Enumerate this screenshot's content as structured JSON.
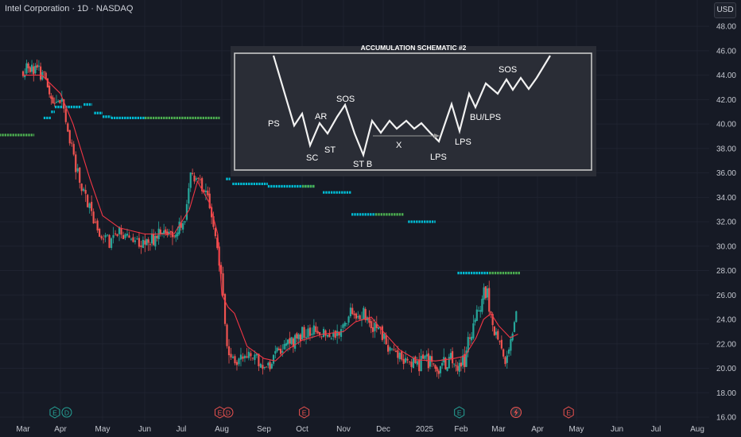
{
  "header": {
    "title": "Intel Corporation · 1D · NASDAQ",
    "currency": "USD"
  },
  "colors": {
    "background": "#161a25",
    "up": "#26a69a",
    "down": "#ef5350",
    "ma_line": "#f23645",
    "level_cyan": "#00bcd4",
    "level_green": "#4caf50",
    "level_red": "#f23645",
    "schematic_bg": "#2a2d36",
    "schematic_line": "#ffffff"
  },
  "chart_data": {
    "type": "candlestick",
    "title": "Intel Corporation · 1D · NASDAQ",
    "ylim": [
      16,
      48
    ],
    "y_ticks": [
      "16.00",
      "18.00",
      "20.00",
      "22.00",
      "24.00",
      "26.00",
      "28.00",
      "30.00",
      "32.00",
      "34.00",
      "36.00",
      "38.00",
      "40.00",
      "42.00",
      "44.00",
      "46.00",
      "48.00"
    ],
    "x_ticks": [
      "Mar",
      "Apr",
      "May",
      "Jun",
      "Jul",
      "Aug",
      "Sep",
      "Oct",
      "Nov",
      "Dec",
      "2025",
      "Feb",
      "Mar",
      "Apr",
      "May",
      "Jun",
      "Jul",
      "Aug"
    ],
    "x_tick_index": [
      0,
      1,
      2,
      3,
      4,
      5,
      6,
      7,
      8,
      9,
      10,
      11,
      12,
      13,
      14,
      15,
      16,
      17
    ],
    "price_anchors": [
      [
        0.0,
        44.2
      ],
      [
        0.3,
        44.8
      ],
      [
        0.6,
        43.5
      ],
      [
        0.8,
        41.5
      ],
      [
        1.0,
        42.0
      ],
      [
        1.2,
        39.0
      ],
      [
        1.4,
        36.0
      ],
      [
        1.6,
        34.0
      ],
      [
        1.9,
        31.0
      ],
      [
        2.1,
        30.7
      ],
      [
        2.5,
        30.8
      ],
      [
        3.0,
        30.5
      ],
      [
        3.5,
        30.9
      ],
      [
        3.9,
        31.0
      ],
      [
        4.1,
        32.5
      ],
      [
        4.2,
        35.5
      ],
      [
        4.4,
        36.0
      ],
      [
        4.6,
        34.5
      ],
      [
        4.8,
        31.5
      ],
      [
        5.0,
        28.0
      ],
      [
        5.1,
        22.0
      ],
      [
        5.3,
        20.5
      ],
      [
        5.6,
        21.0
      ],
      [
        5.9,
        20.5
      ],
      [
        6.1,
        20.0
      ],
      [
        6.4,
        21.5
      ],
      [
        6.8,
        22.5
      ],
      [
        7.2,
        23.0
      ],
      [
        7.6,
        22.5
      ],
      [
        7.9,
        23.0
      ],
      [
        8.2,
        24.5
      ],
      [
        8.5,
        24.5
      ],
      [
        8.8,
        23.5
      ],
      [
        9.2,
        21.5
      ],
      [
        9.6,
        20.4
      ],
      [
        10.0,
        20.5
      ],
      [
        10.4,
        20.2
      ],
      [
        10.7,
        20.5
      ],
      [
        10.9,
        20.3
      ],
      [
        11.1,
        20.7
      ],
      [
        11.3,
        23.5
      ],
      [
        11.5,
        25.0
      ],
      [
        11.7,
        26.5
      ],
      [
        11.8,
        24.0
      ],
      [
        12.0,
        22.3
      ],
      [
        12.2,
        20.2
      ],
      [
        12.4,
        23.5
      ],
      [
        12.5,
        25.8
      ]
    ],
    "ma_anchors": [
      [
        0.0,
        44.0
      ],
      [
        0.5,
        44.0
      ],
      [
        1.0,
        42.5
      ],
      [
        1.3,
        40.0
      ],
      [
        1.7,
        35.5
      ],
      [
        2.0,
        32.5
      ],
      [
        2.4,
        31.5
      ],
      [
        3.0,
        31.0
      ],
      [
        3.8,
        31.0
      ],
      [
        4.2,
        33.0
      ],
      [
        4.4,
        35.3
      ],
      [
        4.7,
        33.5
      ],
      [
        4.9,
        31.0
      ],
      [
        5.0,
        26.0
      ],
      [
        5.15,
        25.0
      ],
      [
        5.3,
        24.5
      ],
      [
        5.6,
        21.8
      ],
      [
        6.0,
        20.8
      ],
      [
        6.3,
        20.6
      ],
      [
        6.6,
        21.5
      ],
      [
        7.0,
        22.3
      ],
      [
        7.5,
        22.8
      ],
      [
        8.0,
        23.0
      ],
      [
        8.3,
        23.8
      ],
      [
        8.7,
        24.2
      ],
      [
        9.0,
        23.0
      ],
      [
        9.4,
        21.5
      ],
      [
        9.8,
        20.7
      ],
      [
        10.3,
        20.6
      ],
      [
        10.8,
        20.8
      ],
      [
        11.1,
        21.0
      ],
      [
        11.4,
        22.5
      ],
      [
        11.6,
        24.0
      ],
      [
        11.8,
        24.5
      ],
      [
        12.0,
        23.5
      ],
      [
        12.3,
        22.5
      ],
      [
        12.5,
        22.8
      ]
    ],
    "levels": [
      {
        "x0": -0.5,
        "x1": 0.3,
        "y": 39.1,
        "color": "level_green"
      },
      {
        "x0": 0.55,
        "x1": 0.75,
        "y": 40.5,
        "color": "level_cyan"
      },
      {
        "x0": 0.75,
        "x1": 0.85,
        "y": 41.0,
        "color": "level_cyan"
      },
      {
        "x0": 0.85,
        "x1": 1.5,
        "y": 41.4,
        "color": "level_cyan"
      },
      {
        "x0": 1.55,
        "x1": 1.75,
        "y": 41.6,
        "color": "level_cyan"
      },
      {
        "x0": 1.8,
        "x1": 2.0,
        "y": 40.9,
        "color": "level_cyan"
      },
      {
        "x0": 2.0,
        "x1": 2.2,
        "y": 40.6,
        "color": "level_cyan"
      },
      {
        "x0": 2.2,
        "x1": 3.0,
        "y": 40.5,
        "color": "level_cyan"
      },
      {
        "x0": 3.0,
        "x1": 4.95,
        "y": 40.5,
        "color": "level_green"
      },
      {
        "x0": 5.1,
        "x1": 5.2,
        "y": 35.5,
        "color": "level_cyan"
      },
      {
        "x0": 5.25,
        "x1": 6.1,
        "y": 35.1,
        "color": "level_cyan"
      },
      {
        "x0": 6.1,
        "x1": 7.3,
        "y": 34.9,
        "color": "level_cyan"
      },
      {
        "x0": 7.0,
        "x1": 7.3,
        "y": 34.9,
        "color": "level_green"
      },
      {
        "x0": 7.5,
        "x1": 8.2,
        "y": 34.4,
        "color": "level_cyan"
      },
      {
        "x0": 8.2,
        "x1": 8.8,
        "y": 32.6,
        "color": "level_cyan"
      },
      {
        "x0": 8.8,
        "x1": 9.5,
        "y": 32.6,
        "color": "level_green"
      },
      {
        "x0": 9.6,
        "x1": 10.3,
        "y": 32.0,
        "color": "level_cyan"
      },
      {
        "x0": 10.9,
        "x1": 11.75,
        "y": 27.8,
        "color": "level_cyan"
      },
      {
        "x0": 11.75,
        "x1": 12.55,
        "y": 27.8,
        "color": "level_green"
      }
    ]
  },
  "event_markers": [
    {
      "label": "E",
      "kind": "earnings",
      "color": "#26a69a",
      "x": 0.85
    },
    {
      "label": "D",
      "kind": "dividend",
      "color": "#26a69a",
      "x": 1.15
    },
    {
      "label": "E",
      "kind": "earnings",
      "color": "#ef5350",
      "x": 4.95
    },
    {
      "label": "D",
      "kind": "dividend",
      "color": "#ef5350",
      "x": 5.15
    },
    {
      "label": "E",
      "kind": "earnings",
      "color": "#ef5350",
      "x": 7.05
    },
    {
      "label": "E",
      "kind": "earnings",
      "color": "#26a69a",
      "x": 10.95
    },
    {
      "label": "lightning",
      "kind": "news",
      "color": "#ef5350",
      "x": 12.45
    },
    {
      "label": "E",
      "kind": "earnings",
      "color": "#ef5350",
      "x": 13.8
    }
  ],
  "schematic": {
    "title": "ACCUMULATION SCHEMATIC #2",
    "labels": {
      "ps": "PS",
      "sc": "SC",
      "ar": "AR",
      "st": "ST",
      "sos1": "SOS",
      "stb": "ST B",
      "x": "X",
      "lps1": "LPS",
      "lps2": "LPS",
      "bulps": "BU/LPS",
      "sos2": "SOS"
    }
  }
}
